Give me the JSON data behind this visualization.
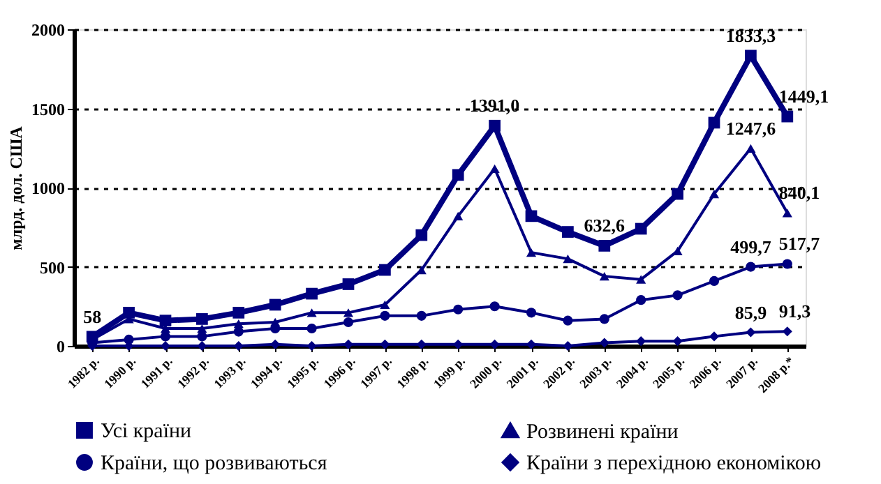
{
  "chart_data": {
    "type": "line",
    "ylabel": "млрд. дол. США",
    "categories": [
      "1982 р.",
      "1990 р.",
      "1991 р.",
      "1992 р.",
      "1993 р.",
      "1994 р.",
      "1995 р.",
      "1996 р.",
      "1997 р.",
      "1998 р.",
      "1999 р.",
      "2000 р.",
      "2001 р.",
      "2002 р.",
      "2003 р.",
      "2004 р.",
      "2005 р.",
      "2006 р.",
      "2007 р.",
      "2008 р.*"
    ],
    "series": [
      {
        "name": "Усі країни",
        "color": "#000080",
        "marker": "square",
        "values": [
          58,
          210,
          160,
          170,
          210,
          260,
          330,
          390,
          480,
          700,
          1080,
          1391.0,
          820,
          720,
          632.6,
          740,
          960,
          1410,
          1833.3,
          1449.1
        ],
        "value_labels": [
          "58",
          null,
          null,
          null,
          null,
          null,
          null,
          null,
          null,
          null,
          null,
          "1391,0",
          null,
          null,
          "632,6",
          null,
          null,
          null,
          "1833,3",
          "1449,1"
        ]
      },
      {
        "name": "Розвинені країни",
        "color": "#000080",
        "marker": "triangle",
        "values": [
          40,
          170,
          110,
          110,
          140,
          150,
          210,
          210,
          260,
          480,
          820,
          1120,
          590,
          550,
          440,
          420,
          600,
          960,
          1247.6,
          840.1
        ],
        "value_labels": [
          null,
          null,
          null,
          null,
          null,
          null,
          null,
          null,
          null,
          null,
          null,
          null,
          null,
          null,
          null,
          null,
          null,
          null,
          "1247,6",
          "840,1"
        ]
      },
      {
        "name": "Країни, що розвиваються",
        "color": "#000080",
        "marker": "circle",
        "values": [
          20,
          40,
          60,
          60,
          90,
          110,
          110,
          150,
          190,
          190,
          230,
          250,
          210,
          160,
          170,
          290,
          320,
          410,
          499.7,
          517.7
        ],
        "value_labels": [
          null,
          null,
          null,
          null,
          null,
          null,
          null,
          null,
          null,
          null,
          null,
          null,
          null,
          null,
          null,
          null,
          null,
          null,
          "499,7",
          "517,7"
        ]
      },
      {
        "name": "Країни з перехідною економікою",
        "color": "#000080",
        "marker": "diamond",
        "values": [
          0,
          0,
          0,
          0,
          0,
          10,
          0,
          10,
          10,
          10,
          10,
          10,
          10,
          0,
          20,
          30,
          30,
          60,
          85.9,
          91.3
        ],
        "value_labels": [
          null,
          null,
          null,
          null,
          null,
          null,
          null,
          null,
          null,
          null,
          null,
          null,
          null,
          null,
          null,
          null,
          null,
          null,
          "85,9",
          "91,3"
        ]
      }
    ],
    "ylim": [
      0,
      2000
    ],
    "yticks": [
      0,
      500,
      1000,
      1500,
      2000
    ],
    "grid": "y",
    "legend": "bottom"
  }
}
